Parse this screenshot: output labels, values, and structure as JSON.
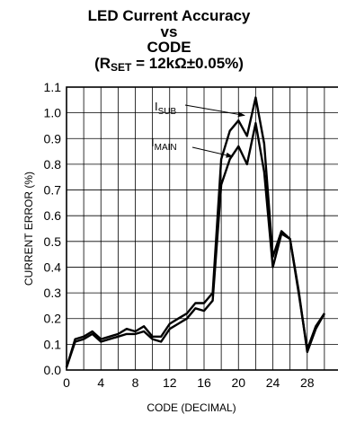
{
  "chart_data": {
    "type": "line",
    "title_lines": [
      "LED Current Accuracy",
      "vs",
      "CODE"
    ],
    "subtitle": {
      "prefix": "(R",
      "subscript": "SET",
      "suffix": " = 12kΩ±0.05%)"
    },
    "xlabel": "CODE (DECIMAL)",
    "ylabel": "CURRENT ERROR (%)",
    "xlim": [
      0,
      32
    ],
    "ylim": [
      0,
      1.1
    ],
    "xticks": [
      "0",
      "4",
      "8",
      "12",
      "16",
      "20",
      "24",
      "28"
    ],
    "yticks": [
      "0.0",
      "0.1",
      "0.2",
      "0.3",
      "0.4",
      "0.5",
      "0.6",
      "0.7",
      "0.8",
      "0.9",
      "1.0",
      "1.1"
    ],
    "grid": true,
    "series": [
      {
        "name": "I_SUB",
        "label_main": "I",
        "label_sub": "SUB",
        "x": [
          0,
          1,
          2,
          3,
          4,
          5,
          6,
          7,
          8,
          9,
          10,
          11,
          12,
          13,
          14,
          15,
          16,
          17,
          18,
          19,
          20,
          21,
          22,
          23,
          24,
          25,
          26,
          27,
          28,
          29,
          30
        ],
        "values": [
          0.01,
          0.12,
          0.13,
          0.15,
          0.12,
          0.13,
          0.14,
          0.16,
          0.15,
          0.17,
          0.13,
          0.13,
          0.18,
          0.2,
          0.22,
          0.26,
          0.26,
          0.3,
          0.82,
          0.93,
          0.97,
          0.91,
          1.06,
          0.88,
          0.44,
          0.54,
          0.51,
          0.31,
          0.07,
          0.16,
          0.22
        ]
      },
      {
        "name": "I_MAIN",
        "label_main": "I",
        "label_sub": "MAIN",
        "x": [
          0,
          1,
          2,
          3,
          4,
          5,
          6,
          7,
          8,
          9,
          10,
          11,
          12,
          13,
          14,
          15,
          16,
          17,
          18,
          19,
          20,
          21,
          22,
          23,
          24,
          25,
          26,
          27,
          28,
          29,
          30
        ],
        "values": [
          0.01,
          0.11,
          0.12,
          0.14,
          0.11,
          0.12,
          0.13,
          0.14,
          0.14,
          0.15,
          0.12,
          0.11,
          0.16,
          0.18,
          0.2,
          0.24,
          0.23,
          0.27,
          0.72,
          0.82,
          0.87,
          0.8,
          0.96,
          0.77,
          0.4,
          0.53,
          0.51,
          0.3,
          0.08,
          0.17,
          0.22
        ]
      }
    ]
  }
}
